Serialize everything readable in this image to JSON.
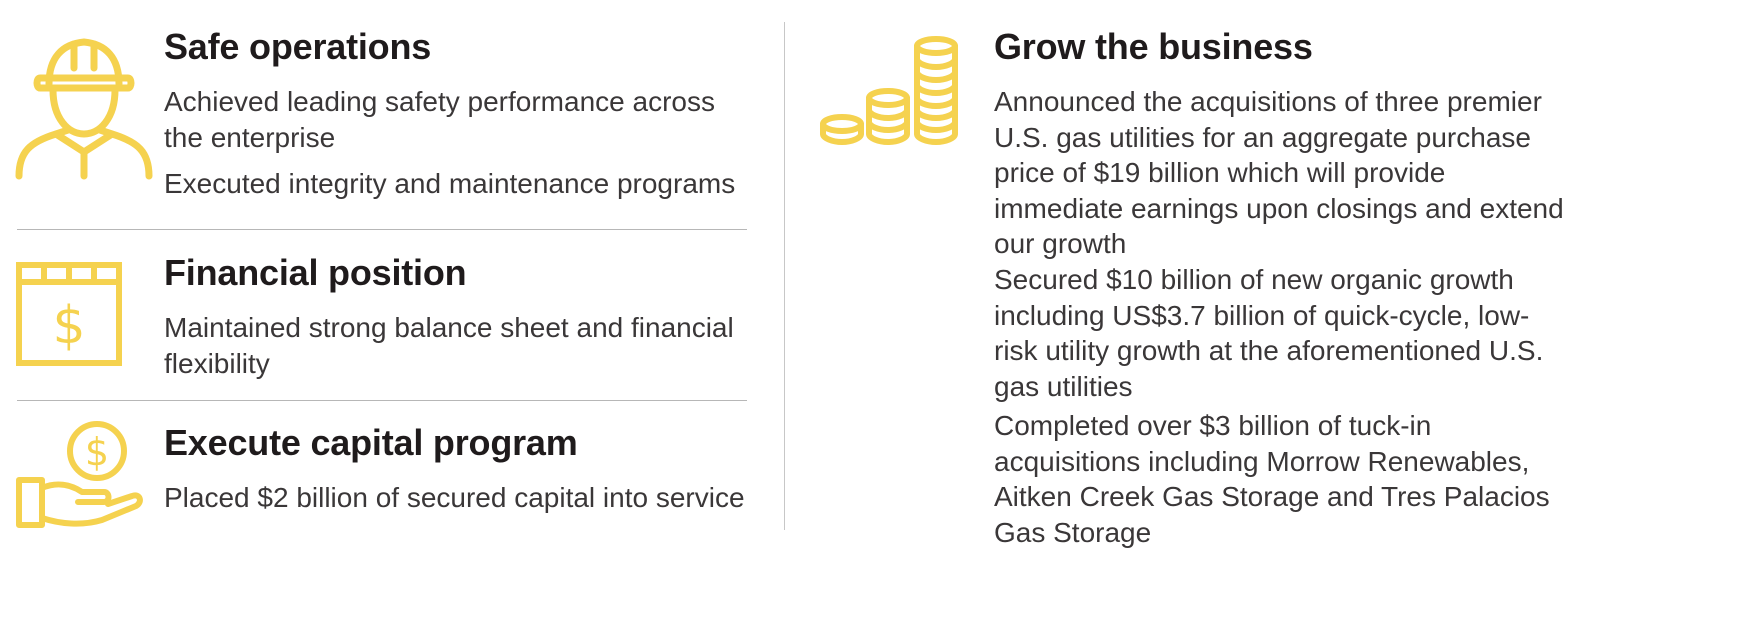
{
  "accent_color": "#f5d24f",
  "left": {
    "sections": [
      {
        "icon": "worker-hard-hat-icon",
        "title": "Safe operations",
        "items": [
          "Achieved leading safety performance across the enterprise",
          "Executed integrity and maintenance programs"
        ]
      },
      {
        "icon": "calendar-dollar-icon",
        "title": "Financial position",
        "items": [
          "Maintained strong balance sheet and financial flexibility"
        ]
      },
      {
        "icon": "hand-coin-icon",
        "title": "Execute capital program",
        "items": [
          "Placed $2 billion of secured capital into service"
        ]
      }
    ]
  },
  "right": {
    "icon": "coin-stacks-icon",
    "title": "Grow the business",
    "items": [
      "Announced the acquisitions of three premier U.S. gas utilities for an aggregate purchase price of $19 billion which will provide immediate earnings upon closings and extend our growth",
      "Secured $10 billion of new organic growth including US$3.7 billion of quick-cycle, low-risk utility growth at the aforementioned U.S. gas utilities",
      "Completed over $3 billion of tuck-in acquisitions including Morrow Renewables, Aitken Creek Gas Storage and Tres Palacios Gas Storage"
    ]
  }
}
